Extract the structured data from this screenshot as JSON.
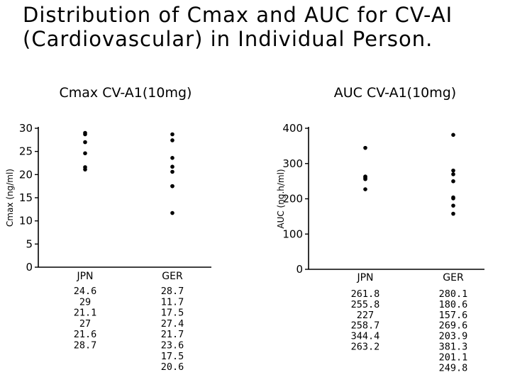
{
  "page": {
    "title_line1": "Distribution of Cmax and AUC for CV-AI",
    "title_line2": "(Cardiovascular) in Individual Person."
  },
  "colors": {
    "marks": "#000000",
    "background": "#ffffff"
  },
  "chart_data": [
    {
      "type": "scatter",
      "title": "Cmax CV-A1(10mg)",
      "xlabel": "",
      "ylabel": "Cmax (ng/ml)",
      "ylim": [
        0,
        30
      ],
      "yticks": [
        0,
        5,
        10,
        15,
        20,
        25,
        30
      ],
      "categories": [
        "JPN",
        "GER"
      ],
      "series": [
        {
          "category": "JPN",
          "values": [
            24.6,
            29,
            21.1,
            27,
            21.6,
            28.7
          ],
          "labels": [
            "24.6",
            "29",
            "21.1",
            "27",
            "21.6",
            "28.7"
          ]
        },
        {
          "category": "GER",
          "values": [
            28.7,
            11.7,
            17.5,
            27.4,
            21.7,
            23.6,
            17.5,
            20.6
          ],
          "labels": [
            "28.7",
            "11.7",
            "17.5",
            "27.4",
            "21.7",
            "23.6",
            "17.5",
            "20.6"
          ]
        }
      ],
      "grid": false,
      "legend": "none"
    },
    {
      "type": "scatter",
      "title": "AUC CV-A1(10mg)",
      "xlabel": "",
      "ylabel": "AUC (ng.h/ml)",
      "ylim": [
        0,
        400
      ],
      "yticks": [
        0,
        100,
        200,
        300,
        400
      ],
      "categories": [
        "JPN",
        "GER"
      ],
      "series": [
        {
          "category": "JPN",
          "values": [
            261.8,
            255.8,
            227,
            258.7,
            344.4,
            263.2
          ],
          "labels": [
            "261.8",
            "255.8",
            "227",
            "258.7",
            "344.4",
            "263.2"
          ]
        },
        {
          "category": "GER",
          "values": [
            280.1,
            180.6,
            157.6,
            269.6,
            203.9,
            381.3,
            201.1,
            249.8
          ],
          "labels": [
            "280.1",
            "180.6",
            "157.6",
            "269.6",
            "203.9",
            "381.3",
            "201.1",
            "249.8"
          ]
        }
      ],
      "grid": false,
      "legend": "none"
    }
  ]
}
